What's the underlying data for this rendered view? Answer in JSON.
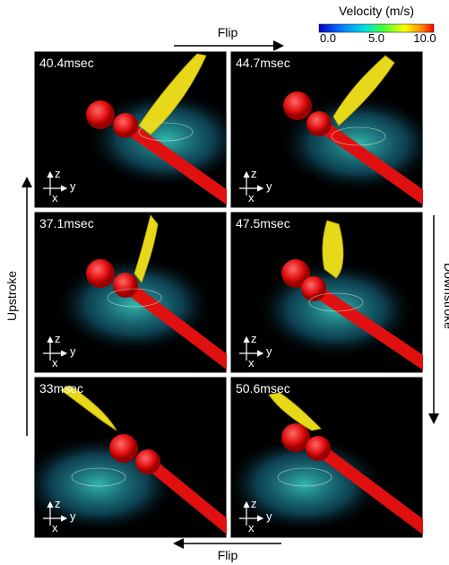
{
  "colorbar": {
    "title": "Velocity (m/s)",
    "ticks": [
      "0.0",
      "5.0",
      "10.0"
    ]
  },
  "annotations": {
    "flip_top": "Flip",
    "flip_bottom": "Flip",
    "upstroke": "Upstroke",
    "downstroke": "Downstroke"
  },
  "axes": {
    "z": "z",
    "y": "y",
    "x": "x"
  },
  "panels": [
    {
      "label": "40.4msec"
    },
    {
      "label": "44.7msec"
    },
    {
      "label": "37.1msec"
    },
    {
      "label": "47.5msec"
    },
    {
      "label": "33msec"
    },
    {
      "label": "50.6msec"
    }
  ]
}
